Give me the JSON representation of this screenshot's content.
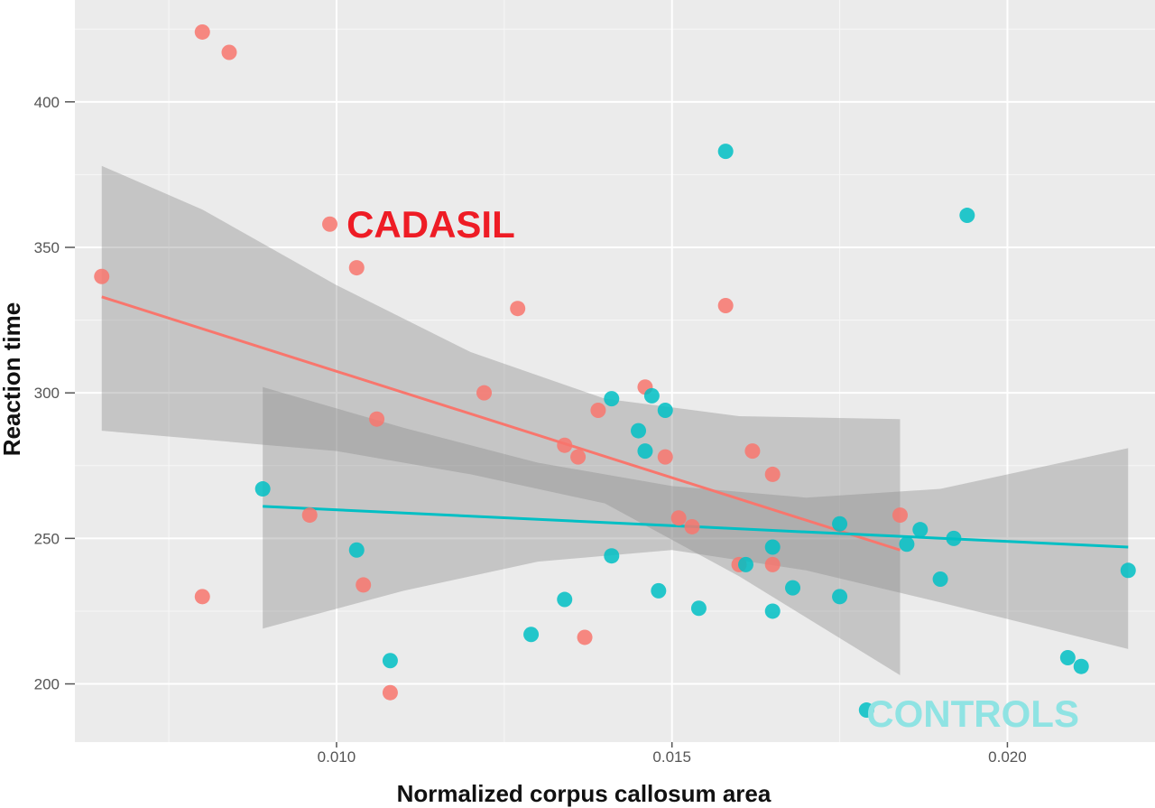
{
  "chart_data": {
    "type": "scatter",
    "xlabel": "Normalized corpus callosum area",
    "ylabel": "Reaction time",
    "xlim": [
      0.0061,
      0.0222
    ],
    "ylim": [
      180,
      435
    ],
    "x_ticks": [
      "0.010",
      "0.015",
      "0.020"
    ],
    "y_ticks": [
      "200",
      "250",
      "300",
      "350",
      "400"
    ],
    "x_tick_values": [
      0.01,
      0.015,
      0.02
    ],
    "y_tick_values": [
      200,
      250,
      300,
      350,
      400
    ],
    "x_minor_values": [
      0.0075,
      0.0125,
      0.0175
    ],
    "y_minor_values": [
      225,
      275,
      325,
      375,
      425
    ],
    "grid": true,
    "background": "#ebebeb",
    "annotations": [
      {
        "text": "CADASIL",
        "series": "CADASIL",
        "color": "#ee1c25",
        "x": 0.01015,
        "y": 358
      },
      {
        "text": "CONTROLS",
        "series": "CONTROLS",
        "color": "#8fe3e3",
        "x": 0.0179,
        "y": 190
      }
    ],
    "series": [
      {
        "name": "CADASIL",
        "color": "#f8766d",
        "points": [
          [
            0.0065,
            340
          ],
          [
            0.008,
            424
          ],
          [
            0.0084,
            417
          ],
          [
            0.008,
            230
          ],
          [
            0.0099,
            358
          ],
          [
            0.0103,
            343
          ],
          [
            0.0096,
            258
          ],
          [
            0.0104,
            234
          ],
          [
            0.0106,
            291
          ],
          [
            0.0108,
            197
          ],
          [
            0.0122,
            300
          ],
          [
            0.0127,
            329
          ],
          [
            0.0134,
            282
          ],
          [
            0.0136,
            278
          ],
          [
            0.0137,
            216
          ],
          [
            0.0139,
            294
          ],
          [
            0.0146,
            302
          ],
          [
            0.0149,
            278
          ],
          [
            0.0151,
            257
          ],
          [
            0.0153,
            254
          ],
          [
            0.0158,
            330
          ],
          [
            0.016,
            241
          ],
          [
            0.0162,
            280
          ],
          [
            0.0165,
            272
          ],
          [
            0.0165,
            241
          ],
          [
            0.0184,
            258
          ]
        ],
        "fit": {
          "x": [
            0.0065,
            0.0184
          ],
          "y": [
            333,
            246
          ]
        },
        "ci_band": {
          "x": [
            0.0065,
            0.008,
            0.01,
            0.012,
            0.014,
            0.016,
            0.0184
          ],
          "upper": [
            378,
            363,
            337,
            314,
            298,
            292,
            291
          ],
          "lower": [
            287,
            284,
            280,
            272,
            262,
            237,
            203
          ]
        }
      },
      {
        "name": "CONTROLS",
        "color": "#00bfc4",
        "points": [
          [
            0.0089,
            267
          ],
          [
            0.0103,
            246
          ],
          [
            0.0108,
            208
          ],
          [
            0.0129,
            217
          ],
          [
            0.0134,
            229
          ],
          [
            0.0141,
            298
          ],
          [
            0.0141,
            244
          ],
          [
            0.0145,
            287
          ],
          [
            0.0146,
            280
          ],
          [
            0.0147,
            299
          ],
          [
            0.0148,
            232
          ],
          [
            0.0149,
            294
          ],
          [
            0.0154,
            226
          ],
          [
            0.0158,
            383
          ],
          [
            0.0161,
            241
          ],
          [
            0.0165,
            247
          ],
          [
            0.0165,
            225
          ],
          [
            0.0168,
            233
          ],
          [
            0.0175,
            255
          ],
          [
            0.0175,
            230
          ],
          [
            0.0179,
            191
          ],
          [
            0.0185,
            248
          ],
          [
            0.0187,
            253
          ],
          [
            0.019,
            236
          ],
          [
            0.0192,
            250
          ],
          [
            0.0194,
            361
          ],
          [
            0.0209,
            209
          ],
          [
            0.0211,
            206
          ],
          [
            0.0218,
            239
          ]
        ],
        "fit": {
          "x": [
            0.0089,
            0.0218
          ],
          "y": [
            261,
            247
          ]
        },
        "ci_band": {
          "x": [
            0.0089,
            0.011,
            0.013,
            0.015,
            0.017,
            0.019,
            0.0218
          ],
          "upper": [
            302,
            288,
            276,
            268,
            264,
            267,
            281
          ],
          "lower": [
            219,
            232,
            242,
            246,
            239,
            228,
            212
          ]
        }
      }
    ]
  }
}
